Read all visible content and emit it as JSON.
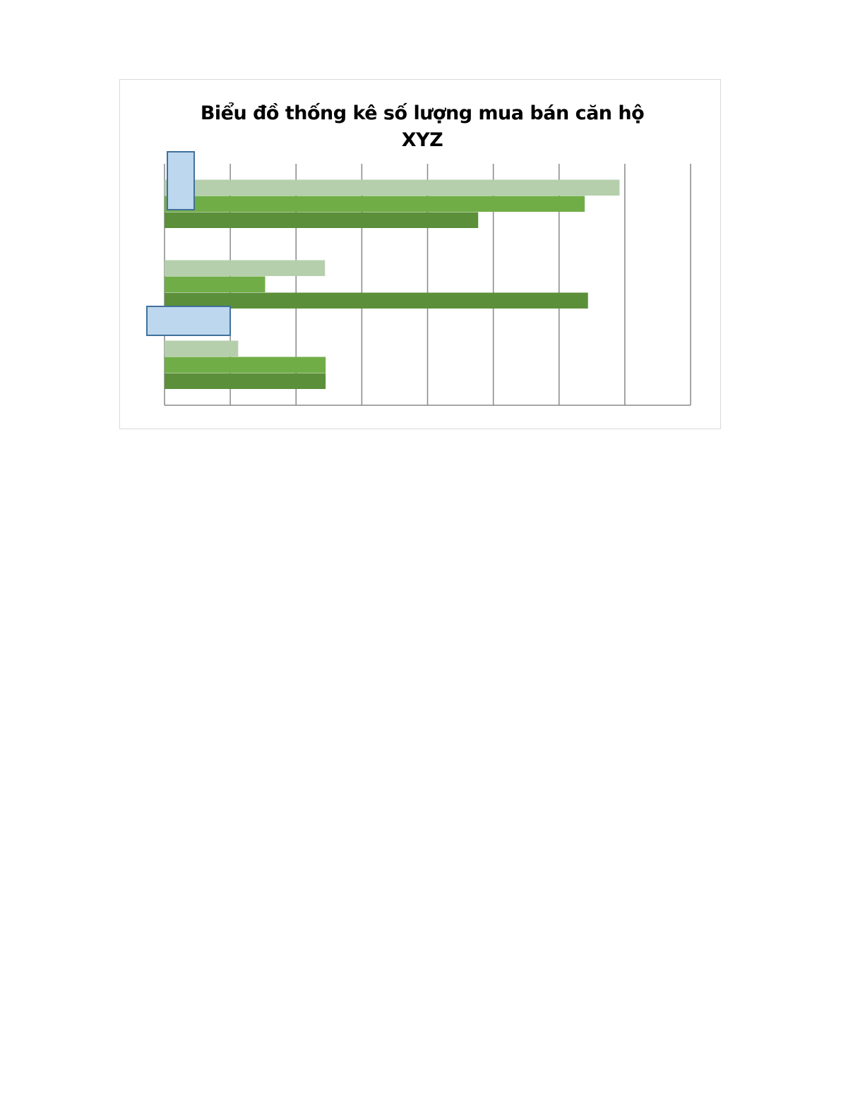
{
  "chart_data": {
    "type": "bar",
    "orientation": "horizontal",
    "title": "Biểu đồ thống kê số lượng mua bán căn hộ XYZ",
    "title_lines": [
      "Biểu đồ thống kê số lượng mua bán căn hộ",
      "XYZ"
    ],
    "xlim": [
      0,
      8
    ],
    "grid": true,
    "legend": "none",
    "categories": [
      "",
      "",
      ""
    ],
    "series": [
      {
        "color": "#b5cfac",
        "values": [
          6.92,
          2.44,
          1.12
        ]
      },
      {
        "color": "#70ad47",
        "values": [
          6.39,
          1.53,
          2.45
        ]
      },
      {
        "color": "#5b8f3a",
        "values": [
          4.77,
          6.44,
          2.45
        ]
      }
    ]
  },
  "colors": {
    "gridline": "#888888",
    "overlay_fill": "#bdd7ee",
    "overlay_border": "#41719c"
  }
}
